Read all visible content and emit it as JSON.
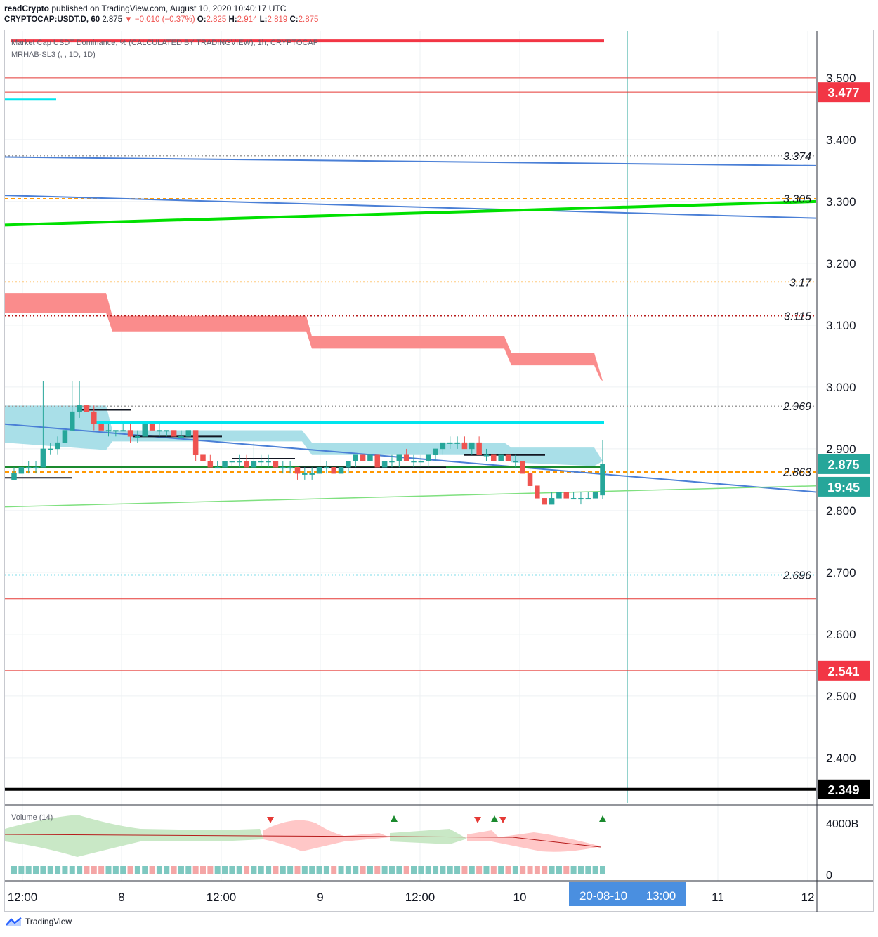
{
  "header": {
    "publisher": "readCrypto",
    "published_text": "published on TradingView.com, August 10, 2020 10:40:17 UTC",
    "symbol": "CRYPTOCAP:USDT.D, 60",
    "last": "2.875",
    "change_arrow": "▼",
    "change": "−0.010 (−0.37%)",
    "o_label": "O:",
    "o": "2.825",
    "h_label": "H:",
    "h": "2.914",
    "l_label": "L:",
    "l": "2.819",
    "c_label": "C:",
    "c": "2.875"
  },
  "legend": {
    "line1": "Market Cap USDT Dominance, % (CALCULATED BY TRADINGVIEW), 1h, CRYPTOCAP",
    "line2": "MRHAB-SL3 (, , 1D, 1D)"
  },
  "footer": {
    "brand": "TradingView",
    "logo_icon": "tradingview-logo-icon"
  },
  "chart_data": {
    "type": "candlestick",
    "price_axis": {
      "range": [
        2.33,
        3.565
      ],
      "ticks": [
        2.4,
        2.5,
        2.6,
        2.7,
        2.8,
        2.9,
        3.0,
        3.1,
        3.2,
        3.3,
        3.4,
        3.5
      ],
      "tick_labels": [
        "2.400",
        "2.500",
        "2.600",
        "2.700",
        "2.800",
        "2.900",
        "3.000",
        "3.100",
        "3.200",
        "3.300",
        "3.400",
        "3.500"
      ]
    },
    "time_axis": {
      "labels": [
        "12:00",
        "8",
        "12:00",
        "9",
        "12:00",
        "10",
        "11",
        "12"
      ],
      "cursor_label": "20-08-10   13:00",
      "cursor_date": "20-08-10",
      "cursor_time": "13:00"
    },
    "price_badges": [
      {
        "label": "3.477",
        "value": 3.477,
        "bg": "#f23645",
        "fg": "#ffffff"
      },
      {
        "label": "2.875",
        "value": 2.875,
        "bg": "#26a69a",
        "fg": "#ffffff"
      },
      {
        "label": "19:45",
        "value": 2.84,
        "bg": "#26a69a",
        "fg": "#ffffff"
      },
      {
        "label": "2.541",
        "value": 2.541,
        "bg": "#f23645",
        "fg": "#ffffff"
      },
      {
        "label": "2.349",
        "value": 2.349,
        "bg": "#000000",
        "fg": "#ffffff"
      }
    ],
    "level_labels": [
      {
        "label": "3.374",
        "value": 3.374
      },
      {
        "label": "3.305",
        "value": 3.305
      },
      {
        "label": "3.17",
        "value": 3.17
      },
      {
        "label": "3.115",
        "value": 3.115
      },
      {
        "label": "2.969",
        "value": 2.969
      },
      {
        "label": "2.863",
        "value": 2.863
      },
      {
        "label": "2.696",
        "value": 2.696
      }
    ],
    "horizontal_levels": [
      {
        "value": 3.56,
        "color": "#f23645",
        "style": "thick"
      },
      {
        "value": 3.5,
        "color": "#e53935",
        "style": "solid"
      },
      {
        "value": 3.477,
        "color": "#e53935",
        "style": "solid"
      },
      {
        "value": 3.374,
        "color": "#9e9e9e",
        "style": "dotted"
      },
      {
        "value": 3.305,
        "color": "#ff9800",
        "style": "dashed"
      },
      {
        "value": 3.17,
        "color": "#ff9800",
        "style": "dotted"
      },
      {
        "value": 3.115,
        "color": "#b71c1c",
        "style": "dotted"
      },
      {
        "value": 2.969,
        "color": "#9e9e9e",
        "style": "dotted"
      },
      {
        "value": 2.863,
        "color": "#ff9800",
        "style": "dashed-thick"
      },
      {
        "value": 2.696,
        "color": "#00bcd4",
        "style": "dotted"
      },
      {
        "value": 2.657,
        "color": "#e53935",
        "style": "solid"
      },
      {
        "value": 2.541,
        "color": "#e53935",
        "style": "solid"
      },
      {
        "value": 2.349,
        "color": "#000000",
        "style": "thick"
      }
    ],
    "colors": {
      "up": "#26a69a",
      "down": "#ef5350",
      "cloud_red": "#fa8c8c",
      "cloud_blue": "#a9dfe8",
      "green_line": "#00e000",
      "blue_line": "#4a7fd6",
      "cyan_line": "#00e5ee"
    },
    "candles": [
      [
        2.85,
        2.87,
        2.85,
        2.86
      ],
      [
        2.86,
        2.87,
        2.86,
        2.87
      ],
      [
        2.87,
        2.88,
        2.86,
        2.87
      ],
      [
        2.87,
        2.88,
        2.86,
        2.87
      ],
      [
        2.87,
        3.01,
        2.87,
        2.9
      ],
      [
        2.9,
        2.91,
        2.89,
        2.9
      ],
      [
        2.9,
        2.92,
        2.89,
        2.91
      ],
      [
        2.91,
        2.93,
        2.91,
        2.93
      ],
      [
        2.93,
        3.01,
        2.93,
        2.96
      ],
      [
        2.96,
        3.01,
        2.95,
        2.97
      ],
      [
        2.97,
        2.97,
        2.96,
        2.96
      ],
      [
        2.96,
        2.97,
        2.93,
        2.94
      ],
      [
        2.94,
        2.94,
        2.93,
        2.93
      ],
      [
        2.93,
        2.94,
        2.92,
        2.93
      ],
      [
        2.93,
        2.93,
        2.92,
        2.93
      ],
      [
        2.93,
        2.94,
        2.93,
        2.93
      ],
      [
        2.93,
        2.94,
        2.91,
        2.92
      ],
      [
        2.92,
        2.93,
        2.91,
        2.92
      ],
      [
        2.92,
        2.94,
        2.92,
        2.94
      ],
      [
        2.94,
        2.94,
        2.93,
        2.93
      ],
      [
        2.93,
        2.94,
        2.92,
        2.93
      ],
      [
        2.93,
        2.93,
        2.92,
        2.93
      ],
      [
        2.93,
        2.93,
        2.92,
        2.92
      ],
      [
        2.92,
        2.93,
        2.92,
        2.92
      ],
      [
        2.92,
        2.93,
        2.92,
        2.93
      ],
      [
        2.93,
        2.93,
        2.88,
        2.89
      ],
      [
        2.89,
        2.89,
        2.88,
        2.88
      ],
      [
        2.88,
        2.89,
        2.87,
        2.87
      ],
      [
        2.87,
        2.88,
        2.87,
        2.87
      ],
      [
        2.87,
        2.88,
        2.87,
        2.88
      ],
      [
        2.88,
        2.88,
        2.87,
        2.88
      ],
      [
        2.88,
        2.89,
        2.87,
        2.88
      ],
      [
        2.88,
        2.89,
        2.87,
        2.87
      ],
      [
        2.87,
        2.91,
        2.87,
        2.88
      ],
      [
        2.88,
        2.89,
        2.87,
        2.88
      ],
      [
        2.88,
        2.89,
        2.87,
        2.88
      ],
      [
        2.88,
        2.88,
        2.87,
        2.87
      ],
      [
        2.87,
        2.88,
        2.86,
        2.87
      ],
      [
        2.87,
        2.88,
        2.86,
        2.87
      ],
      [
        2.87,
        2.87,
        2.85,
        2.86
      ],
      [
        2.86,
        2.87,
        2.85,
        2.86
      ],
      [
        2.86,
        2.87,
        2.85,
        2.86
      ],
      [
        2.86,
        2.87,
        2.86,
        2.87
      ],
      [
        2.87,
        2.88,
        2.86,
        2.87
      ],
      [
        2.87,
        2.87,
        2.86,
        2.86
      ],
      [
        2.86,
        2.87,
        2.86,
        2.87
      ],
      [
        2.87,
        2.88,
        2.86,
        2.88
      ],
      [
        2.88,
        2.89,
        2.87,
        2.89
      ],
      [
        2.89,
        2.89,
        2.88,
        2.88
      ],
      [
        2.88,
        2.89,
        2.88,
        2.89
      ],
      [
        2.89,
        2.89,
        2.87,
        2.87
      ],
      [
        2.87,
        2.88,
        2.87,
        2.88
      ],
      [
        2.88,
        2.89,
        2.87,
        2.88
      ],
      [
        2.88,
        2.89,
        2.87,
        2.89
      ],
      [
        2.89,
        2.9,
        2.88,
        2.88
      ],
      [
        2.88,
        2.89,
        2.87,
        2.88
      ],
      [
        2.88,
        2.89,
        2.87,
        2.88
      ],
      [
        2.88,
        2.89,
        2.87,
        2.89
      ],
      [
        2.89,
        2.9,
        2.88,
        2.9
      ],
      [
        2.9,
        2.91,
        2.89,
        2.91
      ],
      [
        2.91,
        2.92,
        2.9,
        2.91
      ],
      [
        2.91,
        2.92,
        2.9,
        2.91
      ],
      [
        2.91,
        2.92,
        2.9,
        2.9
      ],
      [
        2.9,
        2.91,
        2.89,
        2.91
      ],
      [
        2.91,
        2.92,
        2.89,
        2.89
      ],
      [
        2.89,
        2.9,
        2.88,
        2.89
      ],
      [
        2.89,
        2.89,
        2.88,
        2.88
      ],
      [
        2.88,
        2.89,
        2.88,
        2.89
      ],
      [
        2.89,
        2.89,
        2.88,
        2.88
      ],
      [
        2.88,
        2.89,
        2.87,
        2.88
      ],
      [
        2.88,
        2.88,
        2.86,
        2.86
      ],
      [
        2.86,
        2.87,
        2.83,
        2.84
      ],
      [
        2.84,
        2.84,
        2.82,
        2.82
      ],
      [
        2.82,
        2.82,
        2.81,
        2.81
      ],
      [
        2.81,
        2.83,
        2.81,
        2.82
      ],
      [
        2.82,
        2.83,
        2.82,
        2.83
      ],
      [
        2.83,
        2.83,
        2.82,
        2.82
      ],
      [
        2.82,
        2.83,
        2.82,
        2.82
      ],
      [
        2.82,
        2.83,
        2.81,
        2.82
      ],
      [
        2.82,
        2.83,
        2.82,
        2.82
      ],
      [
        2.82,
        2.83,
        2.82,
        2.83
      ],
      [
        2.825,
        2.914,
        2.819,
        2.875
      ]
    ],
    "volume_axis": {
      "labels": [
        "4000B",
        "0"
      ]
    },
    "volume_legend": "Volume (14)"
  }
}
